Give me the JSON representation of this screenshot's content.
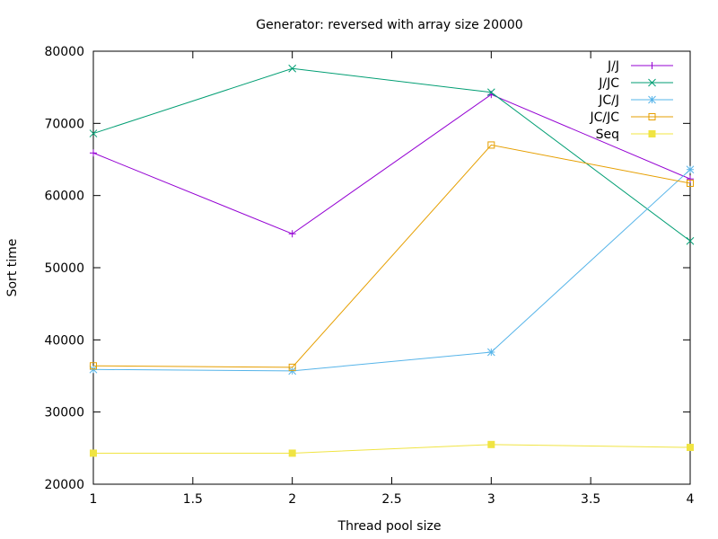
{
  "chart_data": {
    "type": "line",
    "title": "Generator: reversed with array size 20000",
    "xlabel": "Thread pool size",
    "ylabel": "Sort time",
    "xlim": [
      1,
      4
    ],
    "ylim": [
      20000,
      80000
    ],
    "xticks": [
      1,
      1.5,
      2,
      2.5,
      3,
      3.5,
      4
    ],
    "xtick_labels": [
      "1",
      "1.5",
      "2",
      "2.5",
      "3",
      "3.5",
      "4"
    ],
    "yticks": [
      20000,
      30000,
      40000,
      50000,
      60000,
      70000,
      80000
    ],
    "ytick_labels": [
      "20000",
      "30000",
      "40000",
      "50000",
      "60000",
      "70000",
      "80000"
    ],
    "grid": false,
    "legend_position": "top-right",
    "x": [
      1,
      2,
      3,
      4
    ],
    "series": [
      {
        "name": "J/J",
        "values": [
          65900,
          54700,
          74000,
          62300
        ],
        "color": "#9400d3",
        "marker": "plus"
      },
      {
        "name": "J/JC",
        "values": [
          68600,
          77600,
          74300,
          53700
        ],
        "color": "#009e73",
        "marker": "cross"
      },
      {
        "name": "JC/J",
        "values": [
          35900,
          35700,
          38300,
          63600
        ],
        "color": "#56b4e9",
        "marker": "star"
      },
      {
        "name": "JC/JC",
        "values": [
          36400,
          36200,
          67000,
          61700
        ],
        "color": "#e69f00",
        "marker": "open-square"
      },
      {
        "name": "Seq",
        "values": [
          24300,
          24300,
          25500,
          25100
        ],
        "color": "#f0e442",
        "marker": "filled-square"
      }
    ]
  }
}
